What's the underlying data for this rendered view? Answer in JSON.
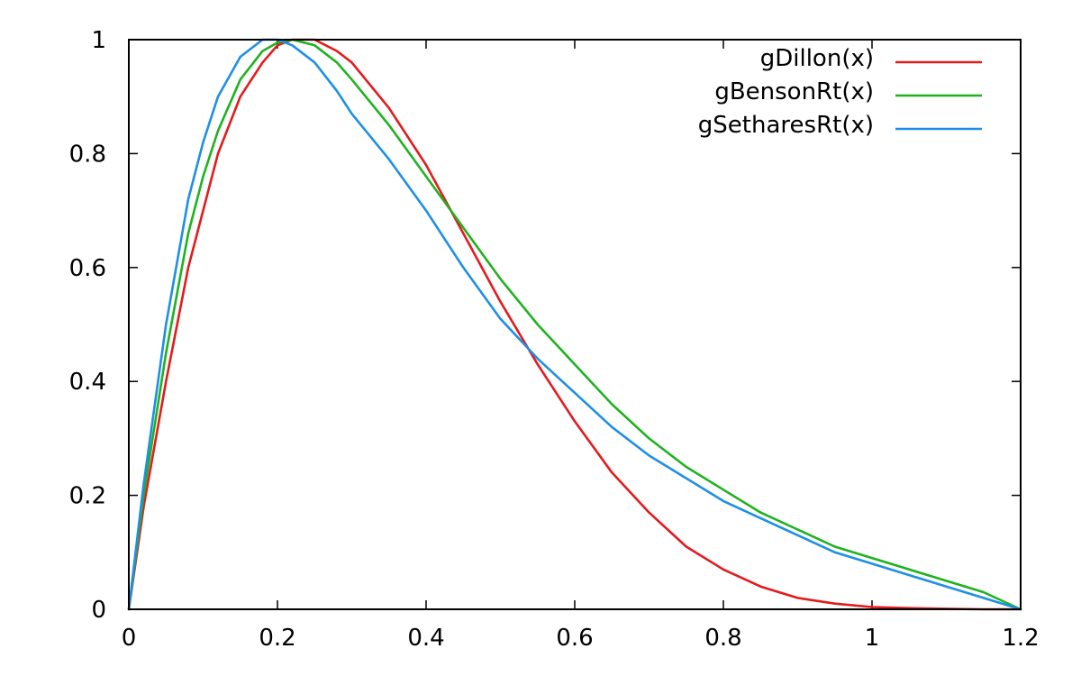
{
  "chart_data": {
    "type": "line",
    "title": "",
    "xlabel": "",
    "ylabel": "",
    "xlim": [
      0,
      1.2
    ],
    "ylim": [
      0,
      1
    ],
    "grid": false,
    "legend_position": "top-right",
    "x_ticks": [
      "0",
      "0.2",
      "0.4",
      "0.6",
      "0.8",
      "1",
      "1.2"
    ],
    "y_ticks": [
      "0",
      "0.2",
      "0.4",
      "0.6",
      "0.8",
      "1"
    ],
    "series": [
      {
        "name": "gDillon(x)",
        "color": "#e41a1c",
        "x": [
          0,
          0.02,
          0.05,
          0.08,
          0.1,
          0.12,
          0.15,
          0.18,
          0.2,
          0.22,
          0.25,
          0.28,
          0.3,
          0.35,
          0.4,
          0.45,
          0.5,
          0.55,
          0.6,
          0.65,
          0.7,
          0.75,
          0.8,
          0.85,
          0.9,
          0.95,
          1.0,
          1.05,
          1.1,
          1.15,
          1.2
        ],
        "y": [
          0,
          0.18,
          0.4,
          0.6,
          0.7,
          0.8,
          0.9,
          0.96,
          0.99,
          1.0,
          1.0,
          0.98,
          0.96,
          0.88,
          0.78,
          0.66,
          0.54,
          0.43,
          0.33,
          0.24,
          0.17,
          0.11,
          0.07,
          0.04,
          0.02,
          0.01,
          0.004,
          0.002,
          0.001,
          0.0,
          0.0
        ]
      },
      {
        "name": "gBensonRt(x)",
        "color": "#1fb21f",
        "x": [
          0,
          0.02,
          0.05,
          0.08,
          0.1,
          0.12,
          0.15,
          0.18,
          0.2,
          0.22,
          0.25,
          0.28,
          0.3,
          0.35,
          0.4,
          0.45,
          0.5,
          0.55,
          0.6,
          0.65,
          0.7,
          0.75,
          0.8,
          0.85,
          0.9,
          0.95,
          1.0,
          1.05,
          1.1,
          1.15,
          1.2
        ],
        "y": [
          0,
          0.2,
          0.45,
          0.66,
          0.76,
          0.84,
          0.93,
          0.98,
          0.995,
          1.0,
          0.99,
          0.96,
          0.93,
          0.85,
          0.76,
          0.67,
          0.58,
          0.5,
          0.43,
          0.36,
          0.3,
          0.25,
          0.21,
          0.17,
          0.14,
          0.11,
          0.09,
          0.07,
          0.05,
          0.03,
          0.0
        ]
      },
      {
        "name": "gSetharesRt(x)",
        "color": "#1e8fe6",
        "x": [
          0,
          0.02,
          0.05,
          0.08,
          0.1,
          0.12,
          0.15,
          0.18,
          0.2,
          0.22,
          0.25,
          0.28,
          0.3,
          0.35,
          0.4,
          0.45,
          0.5,
          0.55,
          0.6,
          0.65,
          0.7,
          0.75,
          0.8,
          0.85,
          0.9,
          0.95,
          1.0,
          1.05,
          1.1,
          1.15,
          1.2
        ],
        "y": [
          0,
          0.22,
          0.5,
          0.72,
          0.82,
          0.9,
          0.97,
          1.0,
          1.0,
          0.99,
          0.96,
          0.91,
          0.87,
          0.79,
          0.7,
          0.6,
          0.51,
          0.44,
          0.38,
          0.32,
          0.27,
          0.23,
          0.19,
          0.16,
          0.13,
          0.1,
          0.08,
          0.06,
          0.04,
          0.02,
          0.0
        ]
      }
    ]
  }
}
